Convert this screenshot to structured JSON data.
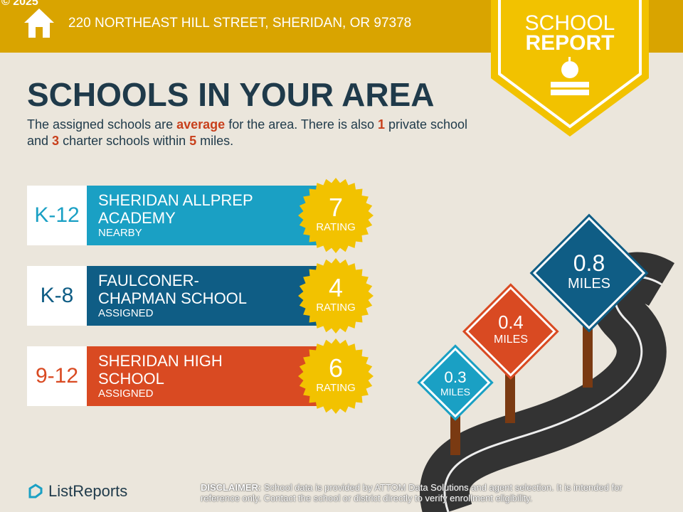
{
  "copyright": "© 2025",
  "header": {
    "address": "220 NORTHEAST HILL STREET, SHERIDAN, OR 97378",
    "badge_line1": "SCHOOL",
    "badge_line2": "REPORT"
  },
  "title": "SCHOOLS IN YOUR AREA",
  "summary": {
    "p1": "The assigned schools are ",
    "quality": "average",
    "p2": " for the area. There is also ",
    "private_count": "1",
    "p3": " private school and ",
    "charter_count": "3",
    "p4": " charter schools within ",
    "miles": "5",
    "p5": " miles."
  },
  "schools": [
    {
      "grade": "K-12",
      "name": "SHERIDAN ALLPREP ACADEMY",
      "status": "NEARBY",
      "rating": "7",
      "rating_label": "RATING",
      "color": "#1aa0c4"
    },
    {
      "grade": "K-8",
      "name": "FAULCONER-CHAPMAN SCHOOL",
      "status": "ASSIGNED",
      "rating": "4",
      "rating_label": "RATING",
      "color": "#0f5d85"
    },
    {
      "grade": "9-12",
      "name": "SHERIDAN HIGH SCHOOL",
      "status": "ASSIGNED",
      "rating": "6",
      "rating_label": "RATING",
      "color": "#d94a22"
    }
  ],
  "signs": [
    {
      "value": "0.3",
      "unit": "MILES",
      "color": "#1aa0c4"
    },
    {
      "value": "0.4",
      "unit": "MILES",
      "color": "#d94a22"
    },
    {
      "value": "0.8",
      "unit": "MILES",
      "color": "#0f5d85"
    }
  ],
  "logo": "ListReports",
  "disclaimer": {
    "label": "DISCLAIMER:",
    "text": " School data is provided by ATTOM Data Solutions and agent selection. It is intended for reference only. Contact the school or district directly to verify enrollment eligibility."
  }
}
